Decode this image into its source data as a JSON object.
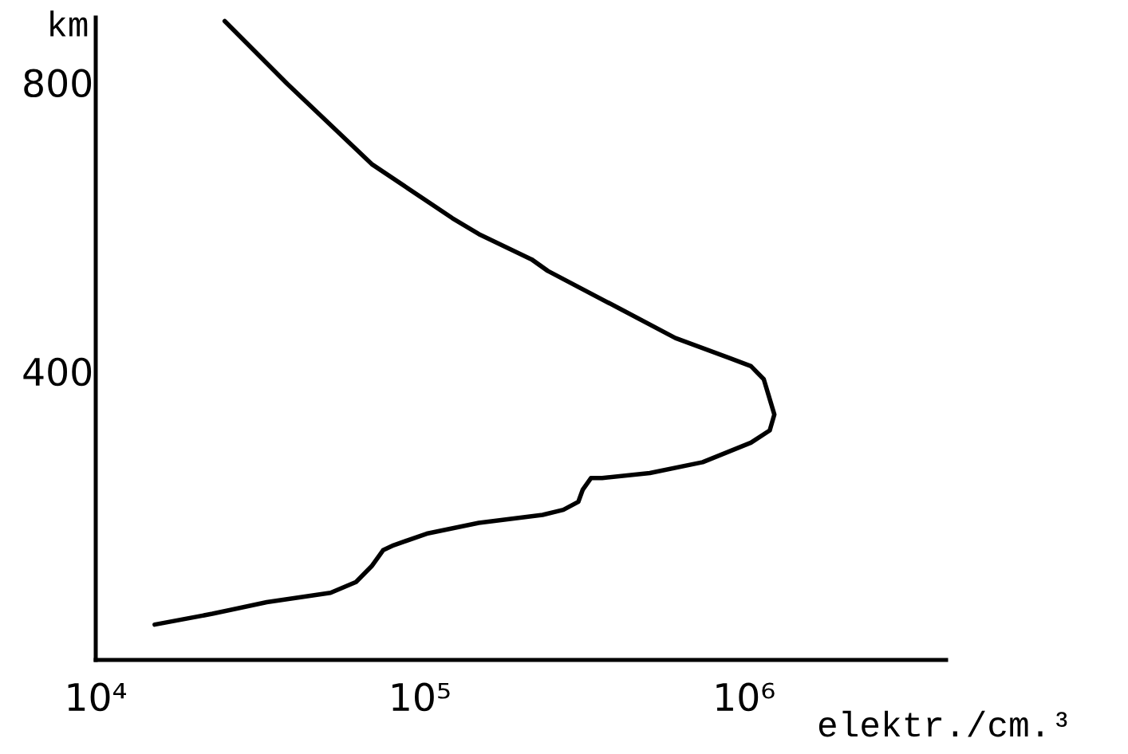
{
  "chart_data": {
    "type": "line",
    "xlabel": "elektr./cm.³",
    "ylabel": "km",
    "log": "x",
    "line_style": "solid",
    "xlim": [
      10000,
      4200000
    ],
    "ylim": [
      0,
      890
    ],
    "xticks": [
      {
        "value": 10000,
        "label": "10⁴"
      },
      {
        "value": 100000,
        "label": "10⁵"
      },
      {
        "value": 1000000,
        "label": "10⁶"
      }
    ],
    "yticks": [
      400,
      800
    ],
    "series": [
      {
        "color": "#000000",
        "x": [
          25000,
          39000,
          71000,
          126000,
          152000,
          221000,
          248000,
          408000,
          614000,
          904000,
          1050000,
          1150000,
          1210000,
          1240000,
          1200000,
          1050000,
          745000,
          512000,
          365000,
          337000,
          318000,
          308000,
          277000,
          239000,
          152000,
          105000,
          83000,
          77000,
          71000,
          63500,
          53000,
          33700,
          22900,
          15200
        ],
        "values": [
          885,
          798,
          687,
          612,
          590,
          555,
          539,
          488,
          446,
          418,
          407,
          389,
          356,
          340,
          318,
          301,
          274,
          259,
          252,
          252,
          236,
          219,
          208,
          201,
          190,
          175,
          159,
          152,
          130,
          108,
          93,
          80,
          64,
          49
        ]
      }
    ]
  }
}
